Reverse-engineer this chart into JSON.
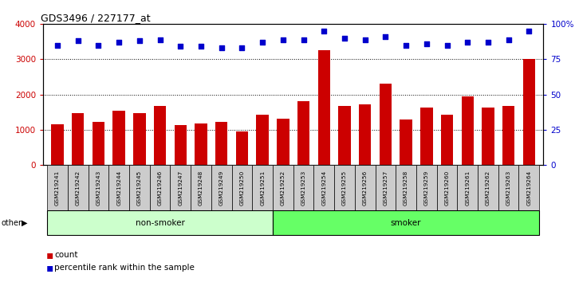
{
  "title": "GDS3496 / 227177_at",
  "samples": [
    "GSM219241",
    "GSM219242",
    "GSM219243",
    "GSM219244",
    "GSM219245",
    "GSM219246",
    "GSM219247",
    "GSM219248",
    "GSM219249",
    "GSM219250",
    "GSM219251",
    "GSM219252",
    "GSM219253",
    "GSM219254",
    "GSM219255",
    "GSM219256",
    "GSM219257",
    "GSM219258",
    "GSM219259",
    "GSM219260",
    "GSM219261",
    "GSM219262",
    "GSM219263",
    "GSM219264"
  ],
  "counts": [
    1150,
    1480,
    1230,
    1540,
    1460,
    1680,
    1130,
    1180,
    1230,
    950,
    1420,
    1320,
    1800,
    3250,
    1680,
    1730,
    2300,
    1300,
    1620,
    1430,
    1950,
    1640,
    1670,
    3000
  ],
  "percentile_ranks": [
    85,
    88,
    85,
    87,
    88,
    89,
    84,
    84,
    83,
    83,
    87,
    89,
    89,
    95,
    90,
    89,
    91,
    85,
    86,
    85,
    87,
    87,
    89,
    95
  ],
  "groups": [
    "non-smoker",
    "non-smoker",
    "non-smoker",
    "non-smoker",
    "non-smoker",
    "non-smoker",
    "non-smoker",
    "non-smoker",
    "non-smoker",
    "non-smoker",
    "non-smoker",
    "smoker",
    "smoker",
    "smoker",
    "smoker",
    "smoker",
    "smoker",
    "smoker",
    "smoker",
    "smoker",
    "smoker",
    "smoker",
    "smoker",
    "smoker"
  ],
  "non_smoker_color": "#ccffcc",
  "smoker_color": "#66ff66",
  "bar_color": "#cc0000",
  "dot_color": "#0000cc",
  "bg_color": "#ffffff",
  "left_axis_color": "#cc0000",
  "right_axis_color": "#0000cc",
  "ylim_left": [
    0,
    4000
  ],
  "ylim_right": [
    0,
    100
  ],
  "yticks_left": [
    0,
    1000,
    2000,
    3000,
    4000
  ],
  "yticks_right": [
    0,
    25,
    50,
    75,
    100
  ],
  "sample_label_color": "#cccccc",
  "bar_width": 0.6
}
